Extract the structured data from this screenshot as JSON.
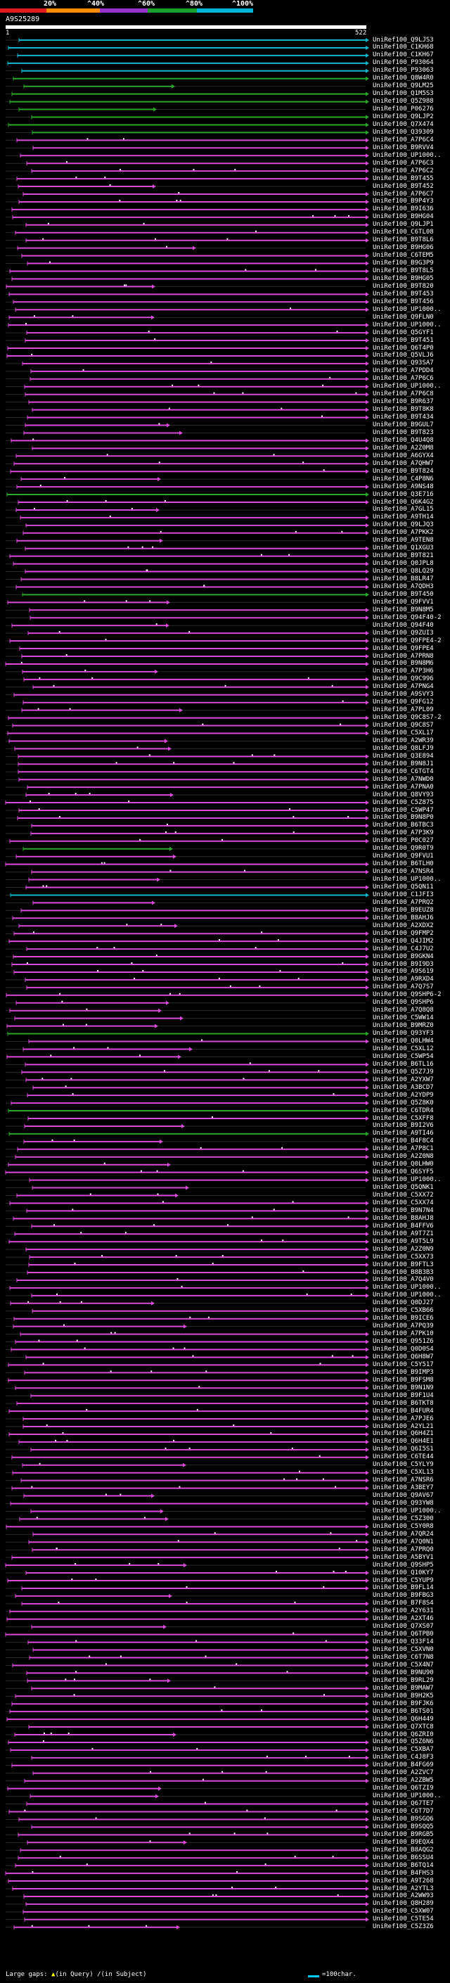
{
  "scale": {
    "labels": [
      "20%",
      "^40%",
      "^60%",
      "^80%",
      "^100%"
    ],
    "colors": [
      "#e31a1c",
      "#ff8c00",
      "#9a33cc",
      "#1aa12b",
      "#00b3d9"
    ]
  },
  "query": {
    "title": "A9S25289",
    "start_label": "1",
    "end_label": "522"
  },
  "colors": {
    "magenta": "#d94ad9",
    "green": "#2aa62a",
    "cyan": "#15b6cc",
    "gap_dot": "#ffffff",
    "dark_line": "#2a2a2a"
  },
  "hits": [
    {
      "name": "UniRef100_Q9LJS3",
      "color": "cyan"
    },
    {
      "name": "UniRef100_C1KH68",
      "color": "cyan"
    },
    {
      "name": "UniRef100_C1KH67",
      "color": "cyan"
    },
    {
      "name": "UniRef100_P93064",
      "color": "cyan"
    },
    {
      "name": "UniRef100_P93063",
      "color": "cyan"
    },
    {
      "name": "UniRef100_Q8W4R0",
      "color": "green"
    },
    {
      "name": "UniRef100_Q9LM25",
      "color": "green"
    },
    {
      "name": "UniRef100_Q1M5S3",
      "color": "green"
    },
    {
      "name": "UniRef100_Q5Z988",
      "color": "green"
    },
    {
      "name": "UniRef100_P06276",
      "color": "green"
    },
    {
      "name": "UniRef100_Q9LJP2",
      "color": "green"
    },
    {
      "name": "UniRef100_Q7X474",
      "color": "green"
    },
    {
      "name": "UniRef100_Q39309",
      "color": "green"
    },
    {
      "name": "UniRef100_A7P6C4",
      "color": "magenta"
    },
    {
      "name": "UniRef100_B9RVV4",
      "color": "magenta"
    },
    {
      "name": "UniRef100_UP1000..",
      "color": "magenta"
    },
    {
      "name": "UniRef100_A7P6C3",
      "color": "magenta"
    },
    {
      "name": "UniRef100_A7P6C2",
      "color": "magenta"
    },
    {
      "name": "UniRef100_B9T455",
      "color": "magenta"
    },
    {
      "name": "UniRef100_B9T452",
      "color": "magenta"
    },
    {
      "name": "UniRef100_A7P6C7",
      "color": "magenta"
    },
    {
      "name": "UniRef100_B9P4Y3",
      "color": "magenta"
    },
    {
      "name": "UniRef100_B9I636",
      "color": "magenta"
    },
    {
      "name": "UniRef100_B9HG04",
      "color": "magenta"
    },
    {
      "name": "UniRef100_Q9LJP1",
      "color": "magenta"
    },
    {
      "name": "UniRef100_C6TL08",
      "color": "magenta"
    },
    {
      "name": "UniRef100_B9T8L6",
      "color": "magenta"
    },
    {
      "name": "UniRef100_B9HG06",
      "color": "magenta"
    },
    {
      "name": "UniRef100_C6TEM5",
      "color": "magenta"
    },
    {
      "name": "UniRef100_B9G3P9",
      "color": "magenta"
    },
    {
      "name": "UniRef100_B9T8L5",
      "color": "magenta"
    },
    {
      "name": "UniRef100_B9HG05",
      "color": "magenta"
    },
    {
      "name": "UniRef100_B9T820",
      "color": "magenta"
    },
    {
      "name": "UniRef100_B9T453",
      "color": "magenta"
    },
    {
      "name": "UniRef100_B9T456",
      "color": "magenta"
    },
    {
      "name": "UniRef100_UP1000..",
      "color": "magenta"
    },
    {
      "name": "UniRef100_Q9FLN0",
      "color": "magenta"
    },
    {
      "name": "UniRef100_UP1000..",
      "color": "magenta"
    },
    {
      "name": "UniRef100_Q5GYF1",
      "color": "magenta"
    },
    {
      "name": "UniRef100_B9T451",
      "color": "magenta"
    },
    {
      "name": "UniRef100_Q6T4P0",
      "color": "magenta"
    },
    {
      "name": "UniRef100_Q5VLJ6",
      "color": "magenta"
    },
    {
      "name": "UniRef100_Q93SA7",
      "color": "magenta"
    },
    {
      "name": "UniRef100_A7PDD4",
      "color": "magenta"
    },
    {
      "name": "UniRef100_A7P6C6",
      "color": "magenta"
    },
    {
      "name": "UniRef100_UP1000..",
      "color": "magenta"
    },
    {
      "name": "UniRef100_A7P6C8",
      "color": "magenta"
    },
    {
      "name": "UniRef100_B9R637",
      "color": "magenta"
    },
    {
      "name": "UniRef100_B9T8K8",
      "color": "magenta"
    },
    {
      "name": "UniRef100_B9T434",
      "color": "magenta"
    },
    {
      "name": "UniRef100_B9GUL7",
      "color": "magenta"
    },
    {
      "name": "UniRef100_B9T823",
      "color": "magenta"
    },
    {
      "name": "UniRef100_Q4U4Q8",
      "color": "magenta"
    },
    {
      "name": "UniRef100_A2Z0M8",
      "color": "magenta"
    },
    {
      "name": "UniRef100_A6GYX4",
      "color": "magenta"
    },
    {
      "name": "UniRef100_A7QHW7",
      "color": "magenta"
    },
    {
      "name": "UniRef100_B9T824",
      "color": "magenta"
    },
    {
      "name": "UniRef100_C4P8N6",
      "color": "magenta"
    },
    {
      "name": "UniRef100_A9NS48",
      "color": "magenta"
    },
    {
      "name": "UniRef100_Q3E716",
      "color": "green"
    },
    {
      "name": "UniRef100_Q6K4G2",
      "color": "magenta"
    },
    {
      "name": "UniRef100_A7GL15",
      "color": "magenta"
    },
    {
      "name": "UniRef100_A9TH14",
      "color": "magenta"
    },
    {
      "name": "UniRef100_Q9LJQ3",
      "color": "magenta"
    },
    {
      "name": "UniRef100_A7PKK2",
      "color": "magenta"
    },
    {
      "name": "UniRef100_A9TEN8",
      "color": "magenta"
    },
    {
      "name": "UniRef100_Q1XGU3",
      "color": "magenta"
    },
    {
      "name": "UniRef100_B9T821",
      "color": "magenta"
    },
    {
      "name": "UniRef100_Q0JPL8",
      "color": "magenta"
    },
    {
      "name": "UniRef100_Q8LQ29",
      "color": "magenta"
    },
    {
      "name": "UniRef100_B8LR47",
      "color": "magenta"
    },
    {
      "name": "UniRef100_A7QDH3",
      "color": "magenta"
    },
    {
      "name": "UniRef100_B9T450",
      "color": "green"
    },
    {
      "name": "UniRef100_Q9FVV1",
      "color": "magenta"
    },
    {
      "name": "UniRef100_B9N8M5",
      "color": "magenta"
    },
    {
      "name": "UniRef100_Q94F40-2",
      "color": "magenta"
    },
    {
      "name": "UniRef100_Q94F40",
      "color": "magenta"
    },
    {
      "name": "UniRef100_Q9ZUI3",
      "color": "magenta"
    },
    {
      "name": "UniRef100_Q9FPE4-2",
      "color": "magenta"
    },
    {
      "name": "UniRef100_Q9FPE4",
      "color": "magenta"
    },
    {
      "name": "UniRef100_A7PRN8",
      "color": "magenta"
    },
    {
      "name": "UniRef100_B9N8M6",
      "color": "magenta"
    },
    {
      "name": "UniRef100_A7P3H6",
      "color": "magenta"
    },
    {
      "name": "UniRef100_Q9C996",
      "color": "magenta"
    },
    {
      "name": "UniRef100_A7PNG4",
      "color": "magenta"
    },
    {
      "name": "UniRef100_A9SVY3",
      "color": "magenta"
    },
    {
      "name": "UniRef100_Q9FG12",
      "color": "magenta"
    },
    {
      "name": "UniRef100_A7PL09",
      "color": "magenta"
    },
    {
      "name": "UniRef100_Q9C8S7-2",
      "color": "magenta"
    },
    {
      "name": "UniRef100_Q9C8S7",
      "color": "magenta"
    },
    {
      "name": "UniRef100_C5XL17",
      "color": "magenta"
    },
    {
      "name": "UniRef100_A2WR39",
      "color": "magenta"
    },
    {
      "name": "UniRef100_Q8LFJ9",
      "color": "magenta"
    },
    {
      "name": "UniRef100_Q3E894",
      "color": "magenta"
    },
    {
      "name": "UniRef100_B9N8J1",
      "color": "magenta"
    },
    {
      "name": "UniRef100_C6TGT4",
      "color": "magenta"
    },
    {
      "name": "UniRef100_A7NWD0",
      "color": "magenta"
    },
    {
      "name": "UniRef100_A7PNA0",
      "color": "magenta"
    },
    {
      "name": "UniRef100_Q8VY93",
      "color": "magenta"
    },
    {
      "name": "UniRef100_C5Z875",
      "color": "magenta"
    },
    {
      "name": "UniRef100_C5WP47",
      "color": "magenta"
    },
    {
      "name": "UniRef100_B9N8P0",
      "color": "magenta"
    },
    {
      "name": "UniRef100_B6TBC3",
      "color": "magenta"
    },
    {
      "name": "UniRef100_A7P3K9",
      "color": "magenta"
    },
    {
      "name": "UniRef100_P0C027",
      "color": "magenta"
    },
    {
      "name": "UniRef100_Q9R0T9",
      "color": "green"
    },
    {
      "name": "UniRef100_Q9FVU1",
      "color": "magenta"
    },
    {
      "name": "UniRef100_B6TLH0",
      "color": "magenta"
    },
    {
      "name": "UniRef100_A7NSR4",
      "color": "magenta"
    },
    {
      "name": "UniRef100_UP1000..",
      "color": "magenta"
    },
    {
      "name": "UniRef100_Q5QN11",
      "color": "magenta"
    },
    {
      "name": "UniRef100_C1JFI3",
      "color": "cyan"
    },
    {
      "name": "UniRef100_A7PRQ2",
      "color": "magenta"
    },
    {
      "name": "UniRef100_B9EUZ8",
      "color": "magenta"
    },
    {
      "name": "UniRef100_B8AHJ6",
      "color": "magenta"
    },
    {
      "name": "UniRef100_A2XDX2",
      "color": "magenta"
    },
    {
      "name": "UniRef100_Q9FMP2",
      "color": "magenta"
    },
    {
      "name": "UniRef100_Q4JIM2",
      "color": "magenta"
    },
    {
      "name": "UniRef100_C4J7U2",
      "color": "magenta"
    },
    {
      "name": "UniRef100_B9GKN4",
      "color": "magenta"
    },
    {
      "name": "UniRef100_B9I9D3",
      "color": "magenta"
    },
    {
      "name": "UniRef100_A9S619",
      "color": "magenta"
    },
    {
      "name": "UniRef100_A9RXD4",
      "color": "magenta"
    },
    {
      "name": "UniRef100_A7Q7S7",
      "color": "magenta"
    },
    {
      "name": "UniRef100_Q9SHP6-2",
      "color": "magenta"
    },
    {
      "name": "UniRef100_Q9SHP6",
      "color": "magenta"
    },
    {
      "name": "UniRef100_A7Q8Q8",
      "color": "magenta"
    },
    {
      "name": "UniRef100_C5WW14",
      "color": "magenta"
    },
    {
      "name": "UniRef100_B9MRZ0",
      "color": "magenta"
    },
    {
      "name": "UniRef100_Q93YF3",
      "color": "green"
    },
    {
      "name": "UniRef100_Q0LHW4",
      "color": "magenta"
    },
    {
      "name": "UniRef100_C5XL12",
      "color": "magenta"
    },
    {
      "name": "UniRef100_C5WP54",
      "color": "magenta"
    },
    {
      "name": "UniRef100_B6TL16",
      "color": "magenta"
    },
    {
      "name": "UniRef100_Q5Z7J9",
      "color": "magenta"
    },
    {
      "name": "UniRef100_A2YXW7",
      "color": "magenta"
    },
    {
      "name": "UniRef100_A3BCD7",
      "color": "magenta"
    },
    {
      "name": "UniRef100_A2YDP9",
      "color": "magenta"
    },
    {
      "name": "UniRef100_Q5Z8K0",
      "color": "magenta"
    },
    {
      "name": "UniRef100_C6TDR4",
      "color": "green"
    },
    {
      "name": "UniRef100_C5XFF8",
      "color": "magenta"
    },
    {
      "name": "UniRef100_B9I2V6",
      "color": "magenta"
    },
    {
      "name": "UniRef100_A9TI46",
      "color": "green"
    },
    {
      "name": "UniRef100_B4F8C4",
      "color": "magenta"
    },
    {
      "name": "UniRef100_A7P8C1",
      "color": "magenta"
    },
    {
      "name": "UniRef100_A2Z0N8",
      "color": "magenta"
    },
    {
      "name": "UniRef100_Q0LHW0",
      "color": "magenta"
    },
    {
      "name": "UniRef100_Q6SYF5",
      "color": "magenta"
    },
    {
      "name": "UniRef100_UP1000..",
      "color": "magenta"
    },
    {
      "name": "UniRef100_Q5QNK1",
      "color": "magenta"
    },
    {
      "name": "UniRef100_C5XX72",
      "color": "magenta"
    },
    {
      "name": "UniRef100_C5XX74",
      "color": "magenta"
    },
    {
      "name": "UniRef100_B9N7N4",
      "color": "magenta"
    },
    {
      "name": "UniRef100_B8AHJ8",
      "color": "magenta"
    },
    {
      "name": "UniRef100_B4FFV6",
      "color": "magenta"
    },
    {
      "name": "UniRef100_A9T7Z1",
      "color": "magenta"
    },
    {
      "name": "UniRef100_A9T5L9",
      "color": "magenta"
    },
    {
      "name": "UniRef100_A2Z0N9",
      "color": "magenta"
    },
    {
      "name": "UniRef100_C5XX73",
      "color": "magenta"
    },
    {
      "name": "UniRef100_B9FTL3",
      "color": "magenta"
    },
    {
      "name": "UniRef100_B8B3B3",
      "color": "magenta"
    },
    {
      "name": "UniRef100_A7Q4V0",
      "color": "magenta"
    },
    {
      "name": "UniRef100_UP1000..",
      "color": "magenta"
    },
    {
      "name": "UniRef100_UP1000..",
      "color": "magenta"
    },
    {
      "name": "UniRef100_Q0DJ27",
      "color": "magenta"
    },
    {
      "name": "UniRef100_C5XB66",
      "color": "magenta"
    },
    {
      "name": "UniRef100_B9ICE6",
      "color": "magenta"
    },
    {
      "name": "UniRef100_A7PQ39",
      "color": "magenta"
    },
    {
      "name": "UniRef100_A7PK10",
      "color": "magenta"
    },
    {
      "name": "UniRef100_Q951Z6",
      "color": "magenta"
    },
    {
      "name": "UniRef100_Q0D0S4",
      "color": "magenta"
    },
    {
      "name": "UniRef100_Q6H8W7",
      "color": "magenta"
    },
    {
      "name": "UniRef100_C5Y517",
      "color": "magenta"
    },
    {
      "name": "UniRef100_B9IMP3",
      "color": "magenta"
    },
    {
      "name": "UniRef100_B9FSM8",
      "color": "magenta"
    },
    {
      "name": "UniRef100_B9N1N9",
      "color": "magenta"
    },
    {
      "name": "UniRef100_B9F1U4",
      "color": "magenta"
    },
    {
      "name": "UniRef100_B6TKT8",
      "color": "magenta"
    },
    {
      "name": "UniRef100_B4FUR4",
      "color": "magenta"
    },
    {
      "name": "UniRef100_A7PJE6",
      "color": "magenta"
    },
    {
      "name": "UniRef100_A2YL21",
      "color": "magenta"
    },
    {
      "name": "UniRef100_Q6H4Z1",
      "color": "magenta"
    },
    {
      "name": "UniRef100_Q6H4E1",
      "color": "magenta"
    },
    {
      "name": "UniRef100_Q6I5S1",
      "color": "magenta"
    },
    {
      "name": "UniRef100_C6TE44",
      "color": "magenta"
    },
    {
      "name": "UniRef100_C5YLY9",
      "color": "magenta"
    },
    {
      "name": "UniRef100_C5XL13",
      "color": "magenta"
    },
    {
      "name": "UniRef100_A7NSR6",
      "color": "magenta"
    },
    {
      "name": "UniRef100_A3BEY7",
      "color": "magenta"
    },
    {
      "name": "UniRef100_Q9AV67",
      "color": "magenta"
    },
    {
      "name": "UniRef100_Q93YW8",
      "color": "magenta"
    },
    {
      "name": "UniRef100_UP1000..",
      "color": "magenta"
    },
    {
      "name": "UniRef100_C5Z300",
      "color": "magenta"
    },
    {
      "name": "UniRef100_C5Y0R8",
      "color": "magenta"
    },
    {
      "name": "UniRef100_A7QR24",
      "color": "magenta"
    },
    {
      "name": "UniRef100_A7Q0N1",
      "color": "magenta"
    },
    {
      "name": "UniRef100_A7PRQ0",
      "color": "magenta"
    },
    {
      "name": "UniRef100_A5BYV1",
      "color": "magenta"
    },
    {
      "name": "UniRef100_Q9SHP5",
      "color": "magenta"
    },
    {
      "name": "UniRef100_Q10KY7",
      "color": "magenta"
    },
    {
      "name": "UniRef100_C5YUP9",
      "color": "magenta"
    },
    {
      "name": "UniRef100_B9FL14",
      "color": "magenta"
    },
    {
      "name": "UniRef100_B9FBG3",
      "color": "magenta"
    },
    {
      "name": "UniRef100_B7F8S4",
      "color": "magenta"
    },
    {
      "name": "UniRef100_A2Y631",
      "color": "magenta"
    },
    {
      "name": "UniRef100_A2XT46",
      "color": "magenta"
    },
    {
      "name": "UniRef100_Q7XS07",
      "color": "magenta"
    },
    {
      "name": "UniRef100_Q6TPB0",
      "color": "magenta"
    },
    {
      "name": "UniRef100_Q33F14",
      "color": "magenta"
    },
    {
      "name": "UniRef100_C5XVN0",
      "color": "magenta"
    },
    {
      "name": "UniRef100_C6T7N8",
      "color": "magenta"
    },
    {
      "name": "UniRef100_C5X4N7",
      "color": "magenta"
    },
    {
      "name": "UniRef100_B9NU90",
      "color": "magenta"
    },
    {
      "name": "UniRef100_B9RL29",
      "color": "magenta"
    },
    {
      "name": "UniRef100_B9MAW7",
      "color": "magenta"
    },
    {
      "name": "UniRef100_B9H2K5",
      "color": "magenta"
    },
    {
      "name": "UniRef100_B9FJK6",
      "color": "magenta"
    },
    {
      "name": "UniRef100_B6TS01",
      "color": "magenta"
    },
    {
      "name": "UniRef100_Q6H449",
      "color": "magenta"
    },
    {
      "name": "UniRef100_Q7XTC8",
      "color": "magenta"
    },
    {
      "name": "UniRef100_Q6ZRI0",
      "color": "magenta"
    },
    {
      "name": "UniRef100_Q5Z6N6",
      "color": "magenta"
    },
    {
      "name": "UniRef100_C5XBA7",
      "color": "magenta"
    },
    {
      "name": "UniRef100_C4J8F3",
      "color": "magenta"
    },
    {
      "name": "UniRef100_B4FG69",
      "color": "magenta"
    },
    {
      "name": "UniRef100_A2ZVC7",
      "color": "magenta"
    },
    {
      "name": "UniRef100_A2ZBW5",
      "color": "magenta"
    },
    {
      "name": "UniRef100_Q6TZI9",
      "color": "magenta"
    },
    {
      "name": "UniRef100_UP1000..",
      "color": "magenta"
    },
    {
      "name": "UniRef100_Q67TE7",
      "color": "magenta"
    },
    {
      "name": "UniRef100_C6T7D7",
      "color": "magenta"
    },
    {
      "name": "UniRef100_B9SGQ6",
      "color": "magenta"
    },
    {
      "name": "UniRef100_B9SQQ5",
      "color": "magenta"
    },
    {
      "name": "UniRef100_B9RGB5",
      "color": "magenta"
    },
    {
      "name": "UniRef100_B9EQX4",
      "color": "magenta"
    },
    {
      "name": "UniRef100_B8AQG2",
      "color": "magenta"
    },
    {
      "name": "UniRef100_B6SSU4",
      "color": "magenta"
    },
    {
      "name": "UniRef100_B6TQ14",
      "color": "magenta"
    },
    {
      "name": "UniRef100_B4FHS3",
      "color": "magenta"
    },
    {
      "name": "UniRef100_A9T268",
      "color": "magenta"
    },
    {
      "name": "UniRef100_A2YTL3",
      "color": "magenta"
    },
    {
      "name": "UniRef100_A2WW93",
      "color": "magenta"
    },
    {
      "name": "UniRef100_Q8H289",
      "color": "magenta"
    },
    {
      "name": "UniRef100_C5XW07",
      "color": "magenta"
    },
    {
      "name": "UniRef100_C5TE54",
      "color": "magenta"
    },
    {
      "name": "UniRef100_C5Z3Z6",
      "color": "magenta"
    }
  ],
  "footer": {
    "label": "Large gaps:",
    "query_gap_label": "(in Query)",
    "subject_gap_label": "(in Subject)",
    "legend_text": "=100char."
  }
}
